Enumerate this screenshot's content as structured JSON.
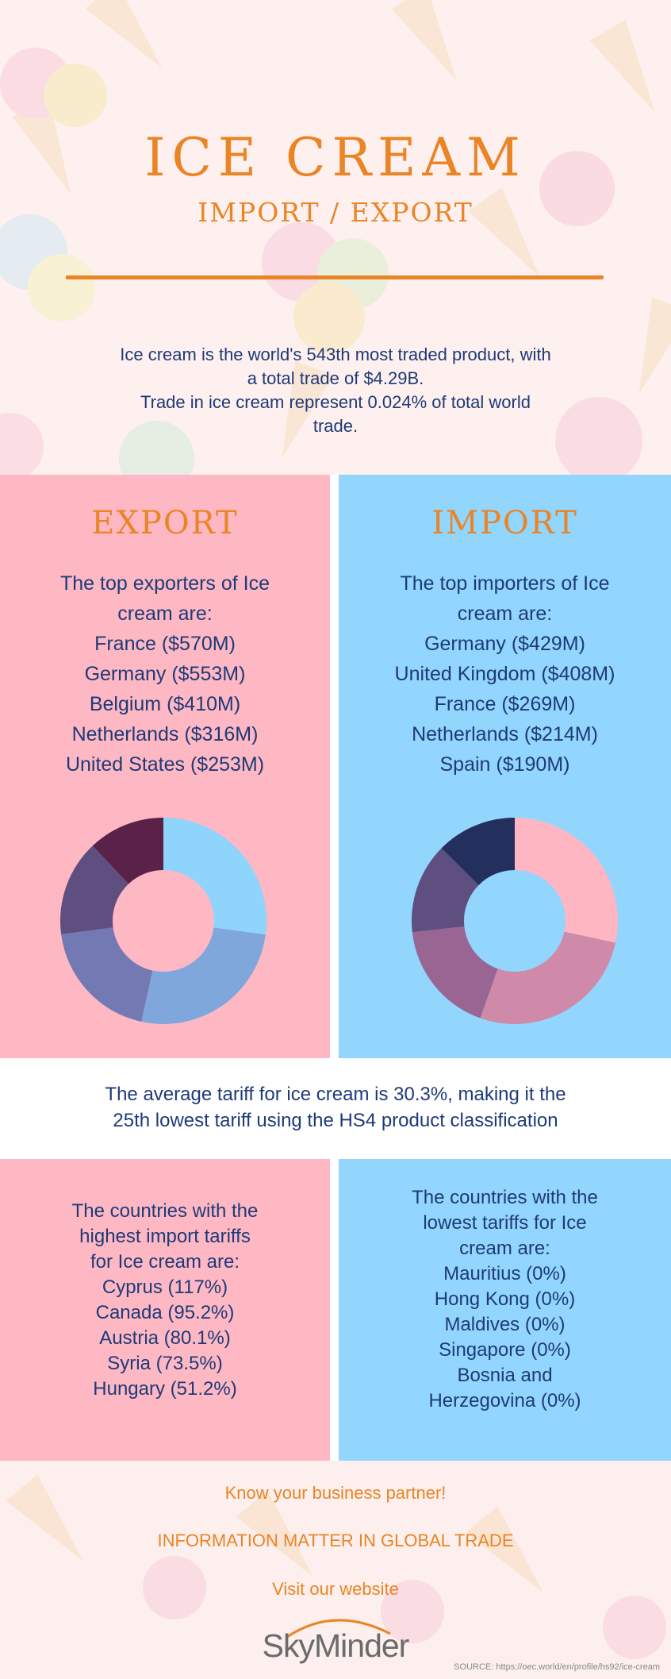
{
  "hero": {
    "title": "ICE CREAM",
    "subtitle": "IMPORT / EXPORT",
    "intro_line1": "Ice cream is the world's 543th most traded product, with",
    "intro_line2": "a total trade of $4.29B.",
    "intro_line3": "Trade in ice cream represent 0.024% of total world",
    "intro_line4": "trade."
  },
  "export": {
    "heading": "EXPORT",
    "intro1": "The top exporters of Ice",
    "intro2": "cream are:",
    "items": [
      "France ($570M)",
      "Germany ($553M)",
      "Belgium ($410M)",
      "Netherlands ($316M)",
      "United States ($253M)"
    ]
  },
  "import": {
    "heading": "IMPORT",
    "intro1": "The top importers of Ice",
    "intro2": "cream are:",
    "items": [
      "Germany ($429M)",
      "United Kingdom ($408M)",
      "France ($269M)",
      "Netherlands ($214M)",
      "Spain ($190M)"
    ]
  },
  "chart_data": [
    {
      "type": "pie",
      "subtype": "donut",
      "categories": [
        "France",
        "Germany",
        "Belgium",
        "Netherlands",
        "United States"
      ],
      "values": [
        570,
        553,
        410,
        316,
        253
      ],
      "unit": "$M",
      "colors": [
        "#8fd4fb",
        "#7fa7dc",
        "#7379b3",
        "#5f4e80",
        "#5a2249"
      ]
    },
    {
      "type": "pie",
      "subtype": "donut",
      "categories": [
        "Germany",
        "United Kingdom",
        "France",
        "Netherlands",
        "Spain"
      ],
      "values": [
        429,
        408,
        269,
        214,
        190
      ],
      "unit": "$M",
      "colors": [
        "#fdb6c2",
        "#d08aa9",
        "#996592",
        "#5f4e80",
        "#23305e"
      ]
    }
  ],
  "tariff": {
    "line1": "The average tariff for ice cream is 30.3%, making it the",
    "line2": "25th lowest tariff using the HS4 product classification"
  },
  "highest": {
    "intro1": "The countries with the",
    "intro2": "highest import tariffs",
    "intro3": "for Ice cream are:",
    "items": [
      "Cyprus (117%)",
      "Canada (95.2%)",
      "Austria (80.1%)",
      "Syria (73.5%)",
      "Hungary (51.2%)"
    ]
  },
  "lowest": {
    "intro1": "The countries with the",
    "intro2": "lowest tariffs for Ice",
    "intro3": "cream are:",
    "items": [
      "Mauritius (0%)",
      "Hong Kong (0%)",
      "Maldives (0%)",
      "Singapore (0%)",
      "Bosnia and",
      "Herzegovina (0%)"
    ]
  },
  "footer": {
    "line1": "Know your business partner!",
    "line2": "INFORMATION MATTER IN GLOBAL TRADE",
    "line3": "Visit our website",
    "logo": "SkyMinder",
    "source": "SOURCE: https://oec.world/en/profile/hs92/ice-cream"
  },
  "colors": {
    "accent": "#ea8424",
    "text": "#1e3a78",
    "pink": "#fdb8c3",
    "blue": "#92d5fd"
  }
}
